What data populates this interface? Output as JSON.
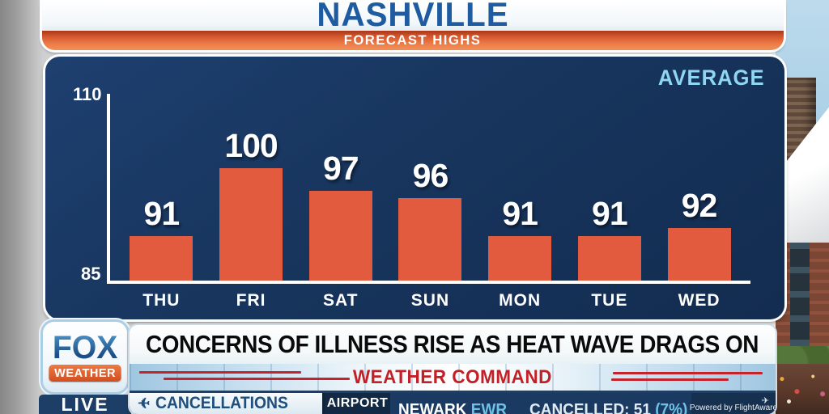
{
  "header": {
    "title": "NASHVILLE",
    "subtitle": "FORECAST HIGHS"
  },
  "chart": {
    "average_label": "AVERAGE"
  },
  "chart_data": {
    "type": "bar",
    "title": "NASHVILLE FORECAST HIGHS",
    "categories": [
      "THU",
      "FRI",
      "SAT",
      "SUN",
      "MON",
      "TUE",
      "WED"
    ],
    "values": [
      91,
      100,
      97,
      96,
      91,
      91,
      92
    ],
    "ylim": [
      85,
      110
    ],
    "xlabel": "",
    "ylabel": "",
    "grid": false,
    "annotations": [
      "AVERAGE"
    ],
    "bar_color": "#E25B3E",
    "background": "#17355E"
  },
  "branding": {
    "network": "FOX",
    "division": "WEATHER",
    "live": "LIVE"
  },
  "lower_third": {
    "headline": "CONCERNS OF ILLNESS RISE AS HEAT WAVE DRAGS ON",
    "banner": "WEATHER COMMAND"
  },
  "ticker": {
    "plane_icon": "✈",
    "topic": "CANCELLATIONS",
    "category": "AIRPORT",
    "airport": "NEWARK",
    "airport_code": "EWR",
    "status": "CANCELLED: 51",
    "status_pct": "(7%)",
    "powered_by": "Powered by FlightAware",
    "powered_icon": "✈"
  },
  "colors": {
    "navy": "#17355E",
    "bar_orange": "#E25B3E",
    "header_blue": "#1E5BA0",
    "average_blue": "#8FD6F2",
    "command_red": "#C22026"
  }
}
